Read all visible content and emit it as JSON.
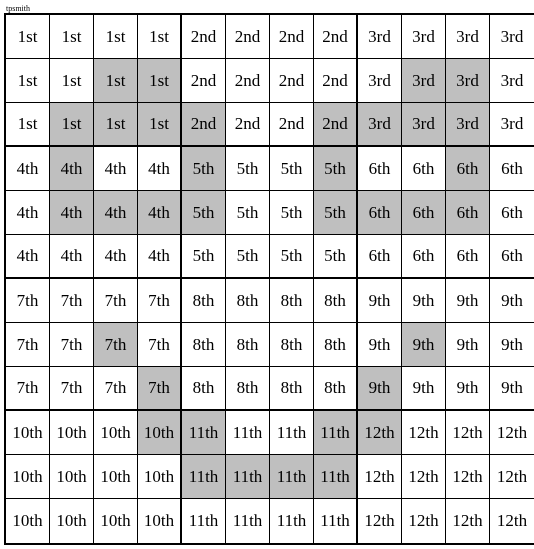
{
  "author": "tpsmith",
  "grid": {
    "rows": 12,
    "cols": 12,
    "block_rows": 3,
    "block_cols": 4,
    "cell_bg": "#ffffff",
    "shaded_bg": "#bfbfbf",
    "border_color": "#000000",
    "font_size": 17,
    "labels": [
      "1st",
      "2nd",
      "3rd",
      "4th",
      "5th",
      "6th",
      "7th",
      "8th",
      "9th",
      "10th",
      "11th",
      "12th"
    ],
    "shaded": [
      [
        1,
        2
      ],
      [
        1,
        3
      ],
      [
        1,
        9
      ],
      [
        1,
        10
      ],
      [
        2,
        1
      ],
      [
        2,
        2
      ],
      [
        2,
        3
      ],
      [
        2,
        4
      ],
      [
        2,
        7
      ],
      [
        2,
        8
      ],
      [
        2,
        9
      ],
      [
        2,
        10
      ],
      [
        3,
        1
      ],
      [
        3,
        4
      ],
      [
        3,
        7
      ],
      [
        3,
        10
      ],
      [
        4,
        1
      ],
      [
        4,
        2
      ],
      [
        4,
        3
      ],
      [
        4,
        4
      ],
      [
        4,
        7
      ],
      [
        4,
        8
      ],
      [
        4,
        9
      ],
      [
        4,
        10
      ],
      [
        7,
        2
      ],
      [
        7,
        9
      ],
      [
        8,
        3
      ],
      [
        8,
        8
      ],
      [
        9,
        3
      ],
      [
        9,
        4
      ],
      [
        9,
        7
      ],
      [
        9,
        8
      ],
      [
        10,
        4
      ],
      [
        10,
        5
      ],
      [
        10,
        6
      ],
      [
        10,
        7
      ]
    ]
  }
}
